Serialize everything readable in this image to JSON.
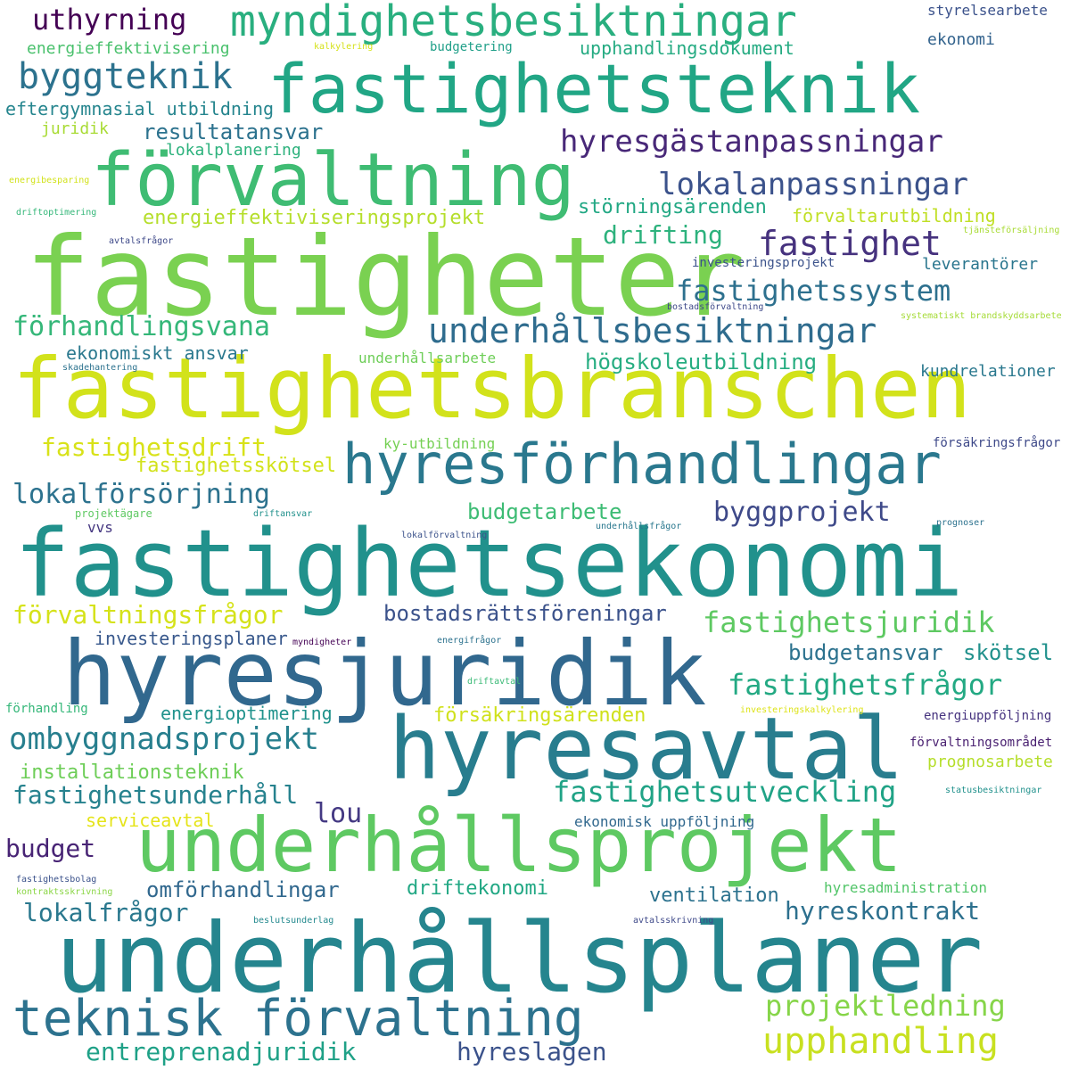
{
  "words": [
    {
      "text": "fastighetsekonomi",
      "color": "#21918c"
    },
    {
      "text": "fastighetsbranschen",
      "color": "#d2e21b"
    },
    {
      "text": "fastigheter",
      "color": "#7ad151"
    },
    {
      "text": "underhållsplaner",
      "color": "#25858e"
    },
    {
      "text": "fastighetsteknik",
      "color": "#21a685"
    },
    {
      "text": "hyresjuridik",
      "color": "#31688e"
    },
    {
      "text": "underhållsprojekt",
      "color": "#5ec962"
    },
    {
      "text": "hyresavtal",
      "color": "#287d8e"
    },
    {
      "text": "förvaltning",
      "color": "#3fbc73"
    },
    {
      "text": "hyresförhandlingar",
      "color": "#2a788e"
    },
    {
      "text": "teknisk förvaltning",
      "color": "#2c728e"
    },
    {
      "text": "myndighetsbesiktningar",
      "color": "#29af7f"
    },
    {
      "text": "hyresgästanpassningar",
      "color": "#482878"
    },
    {
      "text": "underhållsbesiktningar",
      "color": "#2f6c8e"
    },
    {
      "text": "upphandling",
      "color": "#c8e020"
    },
    {
      "text": "byggteknik",
      "color": "#2c728e"
    },
    {
      "text": "ombyggnadsprojekt",
      "color": "#277f8e"
    },
    {
      "text": "fastighetsjuridik",
      "color": "#5ec962"
    },
    {
      "text": "fastighetsfrågor",
      "color": "#23a983"
    },
    {
      "text": "fastighetsutveckling",
      "color": "#20a386"
    },
    {
      "text": "lokalanpassningar",
      "color": "#3b528b"
    },
    {
      "text": "fastighetssystem",
      "color": "#2d708e"
    },
    {
      "text": "projektledning",
      "color": "#86d549"
    },
    {
      "text": "fastighet",
      "color": "#46327e"
    },
    {
      "text": "uthyrning",
      "color": "#440154"
    },
    {
      "text": "lokalförsörjning",
      "color": "#2c728e"
    },
    {
      "text": "förhandlingsvana",
      "color": "#35b779"
    },
    {
      "text": "byggprojekt",
      "color": "#3e4989"
    },
    {
      "text": "fastighetsunderhåll",
      "color": "#26828e"
    },
    {
      "text": "fastighetsdrift",
      "color": "#d8e219"
    },
    {
      "text": "förvaltningsfrågor",
      "color": "#d5e21a"
    },
    {
      "text": "entreprenadjuridik",
      "color": "#1fa187"
    },
    {
      "text": "hyreslagen",
      "color": "#3b528b"
    },
    {
      "text": "hyreskontrakt",
      "color": "#2d708e"
    },
    {
      "text": "lokalfrågor",
      "color": "#2a788e"
    },
    {
      "text": "budget",
      "color": "#482475"
    },
    {
      "text": "lou",
      "color": "#443983"
    },
    {
      "text": "drifting",
      "color": "#2db27d"
    },
    {
      "text": "bostadsrättsföreningar",
      "color": "#3b528b"
    },
    {
      "text": "budgetarbete",
      "color": "#3dbc74"
    },
    {
      "text": "högskoleutbildning",
      "color": "#26ad81"
    },
    {
      "text": "resultatansvar",
      "color": "#2c728e"
    },
    {
      "text": "energieffektiviseringsprojekt",
      "color": "#b5de2b"
    },
    {
      "text": "omförhandlingar",
      "color": "#31688e"
    },
    {
      "text": "budgetansvar",
      "color": "#2c728e"
    },
    {
      "text": "skötsel",
      "color": "#21918c"
    },
    {
      "text": "störningsärenden",
      "color": "#22a884"
    },
    {
      "text": "installationsteknik",
      "color": "#6ece58"
    },
    {
      "text": "fastighetsskötsel",
      "color": "#d2e21b"
    },
    {
      "text": "ventilation",
      "color": "#2c728e"
    },
    {
      "text": "driftekonomi",
      "color": "#22a884"
    },
    {
      "text": "försäkringsärenden",
      "color": "#d0e11c"
    },
    {
      "text": "energioptimering",
      "color": "#20928c"
    },
    {
      "text": "eftergymnasial utbildning",
      "color": "#25858e"
    },
    {
      "text": "ekonomiskt ansvar",
      "color": "#2a788e"
    },
    {
      "text": "investeringsplaner",
      "color": "#38588c"
    },
    {
      "text": "upphandlingsdokument",
      "color": "#25ab82"
    },
    {
      "text": "serviceavtal",
      "color": "#e5e419"
    },
    {
      "text": "förvaltarutbildning",
      "color": "#c0df25"
    },
    {
      "text": "prognosarbete",
      "color": "#b5de2b"
    },
    {
      "text": "leverantörer",
      "color": "#2a768e"
    },
    {
      "text": "ekonomi",
      "color": "#33638d"
    },
    {
      "text": "energieffektivisering",
      "color": "#4ac16d"
    },
    {
      "text": "lokalplanering",
      "color": "#2db27d"
    },
    {
      "text": "juridik",
      "color": "#a8db34"
    },
    {
      "text": "kundrelationer",
      "color": "#2a788e"
    },
    {
      "text": "styrelsearbete",
      "color": "#3b528b"
    },
    {
      "text": "underhållsarbete",
      "color": "#6ece58"
    },
    {
      "text": "ekonomisk uppföljning",
      "color": "#31688e"
    },
    {
      "text": "hyresadministration",
      "color": "#52c569"
    },
    {
      "text": "ky-utbildning",
      "color": "#75d054"
    },
    {
      "text": "försäkringsfrågor",
      "color": "#3e4989"
    },
    {
      "text": "investeringsprojekt",
      "color": "#3b528b"
    },
    {
      "text": "budgetering",
      "color": "#1f9f88"
    },
    {
      "text": "vvs",
      "color": "#453781"
    },
    {
      "text": "energiuppföljning",
      "color": "#46337f"
    },
    {
      "text": "förvaltningsområdet",
      "color": "#481f70"
    },
    {
      "text": "förhandling",
      "color": "#35b779"
    },
    {
      "text": "projektägare",
      "color": "#5ec962"
    },
    {
      "text": "driftansvar",
      "color": "#21918c"
    },
    {
      "text": "lokalförvaltning",
      "color": "#3b528b"
    },
    {
      "text": "underhållsfrågor",
      "color": "#2a788e"
    },
    {
      "text": "prognoser",
      "color": "#2c728e"
    },
    {
      "text": "myndigheter",
      "color": "#440154"
    },
    {
      "text": "energifrågor",
      "color": "#2c728e"
    },
    {
      "text": "driftavtal",
      "color": "#3aba76"
    },
    {
      "text": "investeringskalkylering",
      "color": "#dde318"
    },
    {
      "text": "statusbesiktningar",
      "color": "#21918c"
    },
    {
      "text": "fastighetsbolag",
      "color": "#3b528b"
    },
    {
      "text": "kontraktsskrivning",
      "color": "#8bd646"
    },
    {
      "text": "beslutsunderlag",
      "color": "#23898e"
    },
    {
      "text": "avtalsskrivning",
      "color": "#3e4989"
    },
    {
      "text": "bostadsförvaltning",
      "color": "#3e4989"
    },
    {
      "text": "systematiskt brandskyddsarbete",
      "color": "#a5db36"
    },
    {
      "text": "skadehantering",
      "color": "#2c728e"
    },
    {
      "text": "avtalsfrågor",
      "color": "#3e4989"
    },
    {
      "text": "tjänsteförsäljning",
      "color": "#a8db34"
    },
    {
      "text": "kalkylering",
      "color": "#d5e21a"
    },
    {
      "text": "energibesparing",
      "color": "#d2e21b"
    },
    {
      "text": "driftoptimering",
      "color": "#35b779"
    }
  ]
}
